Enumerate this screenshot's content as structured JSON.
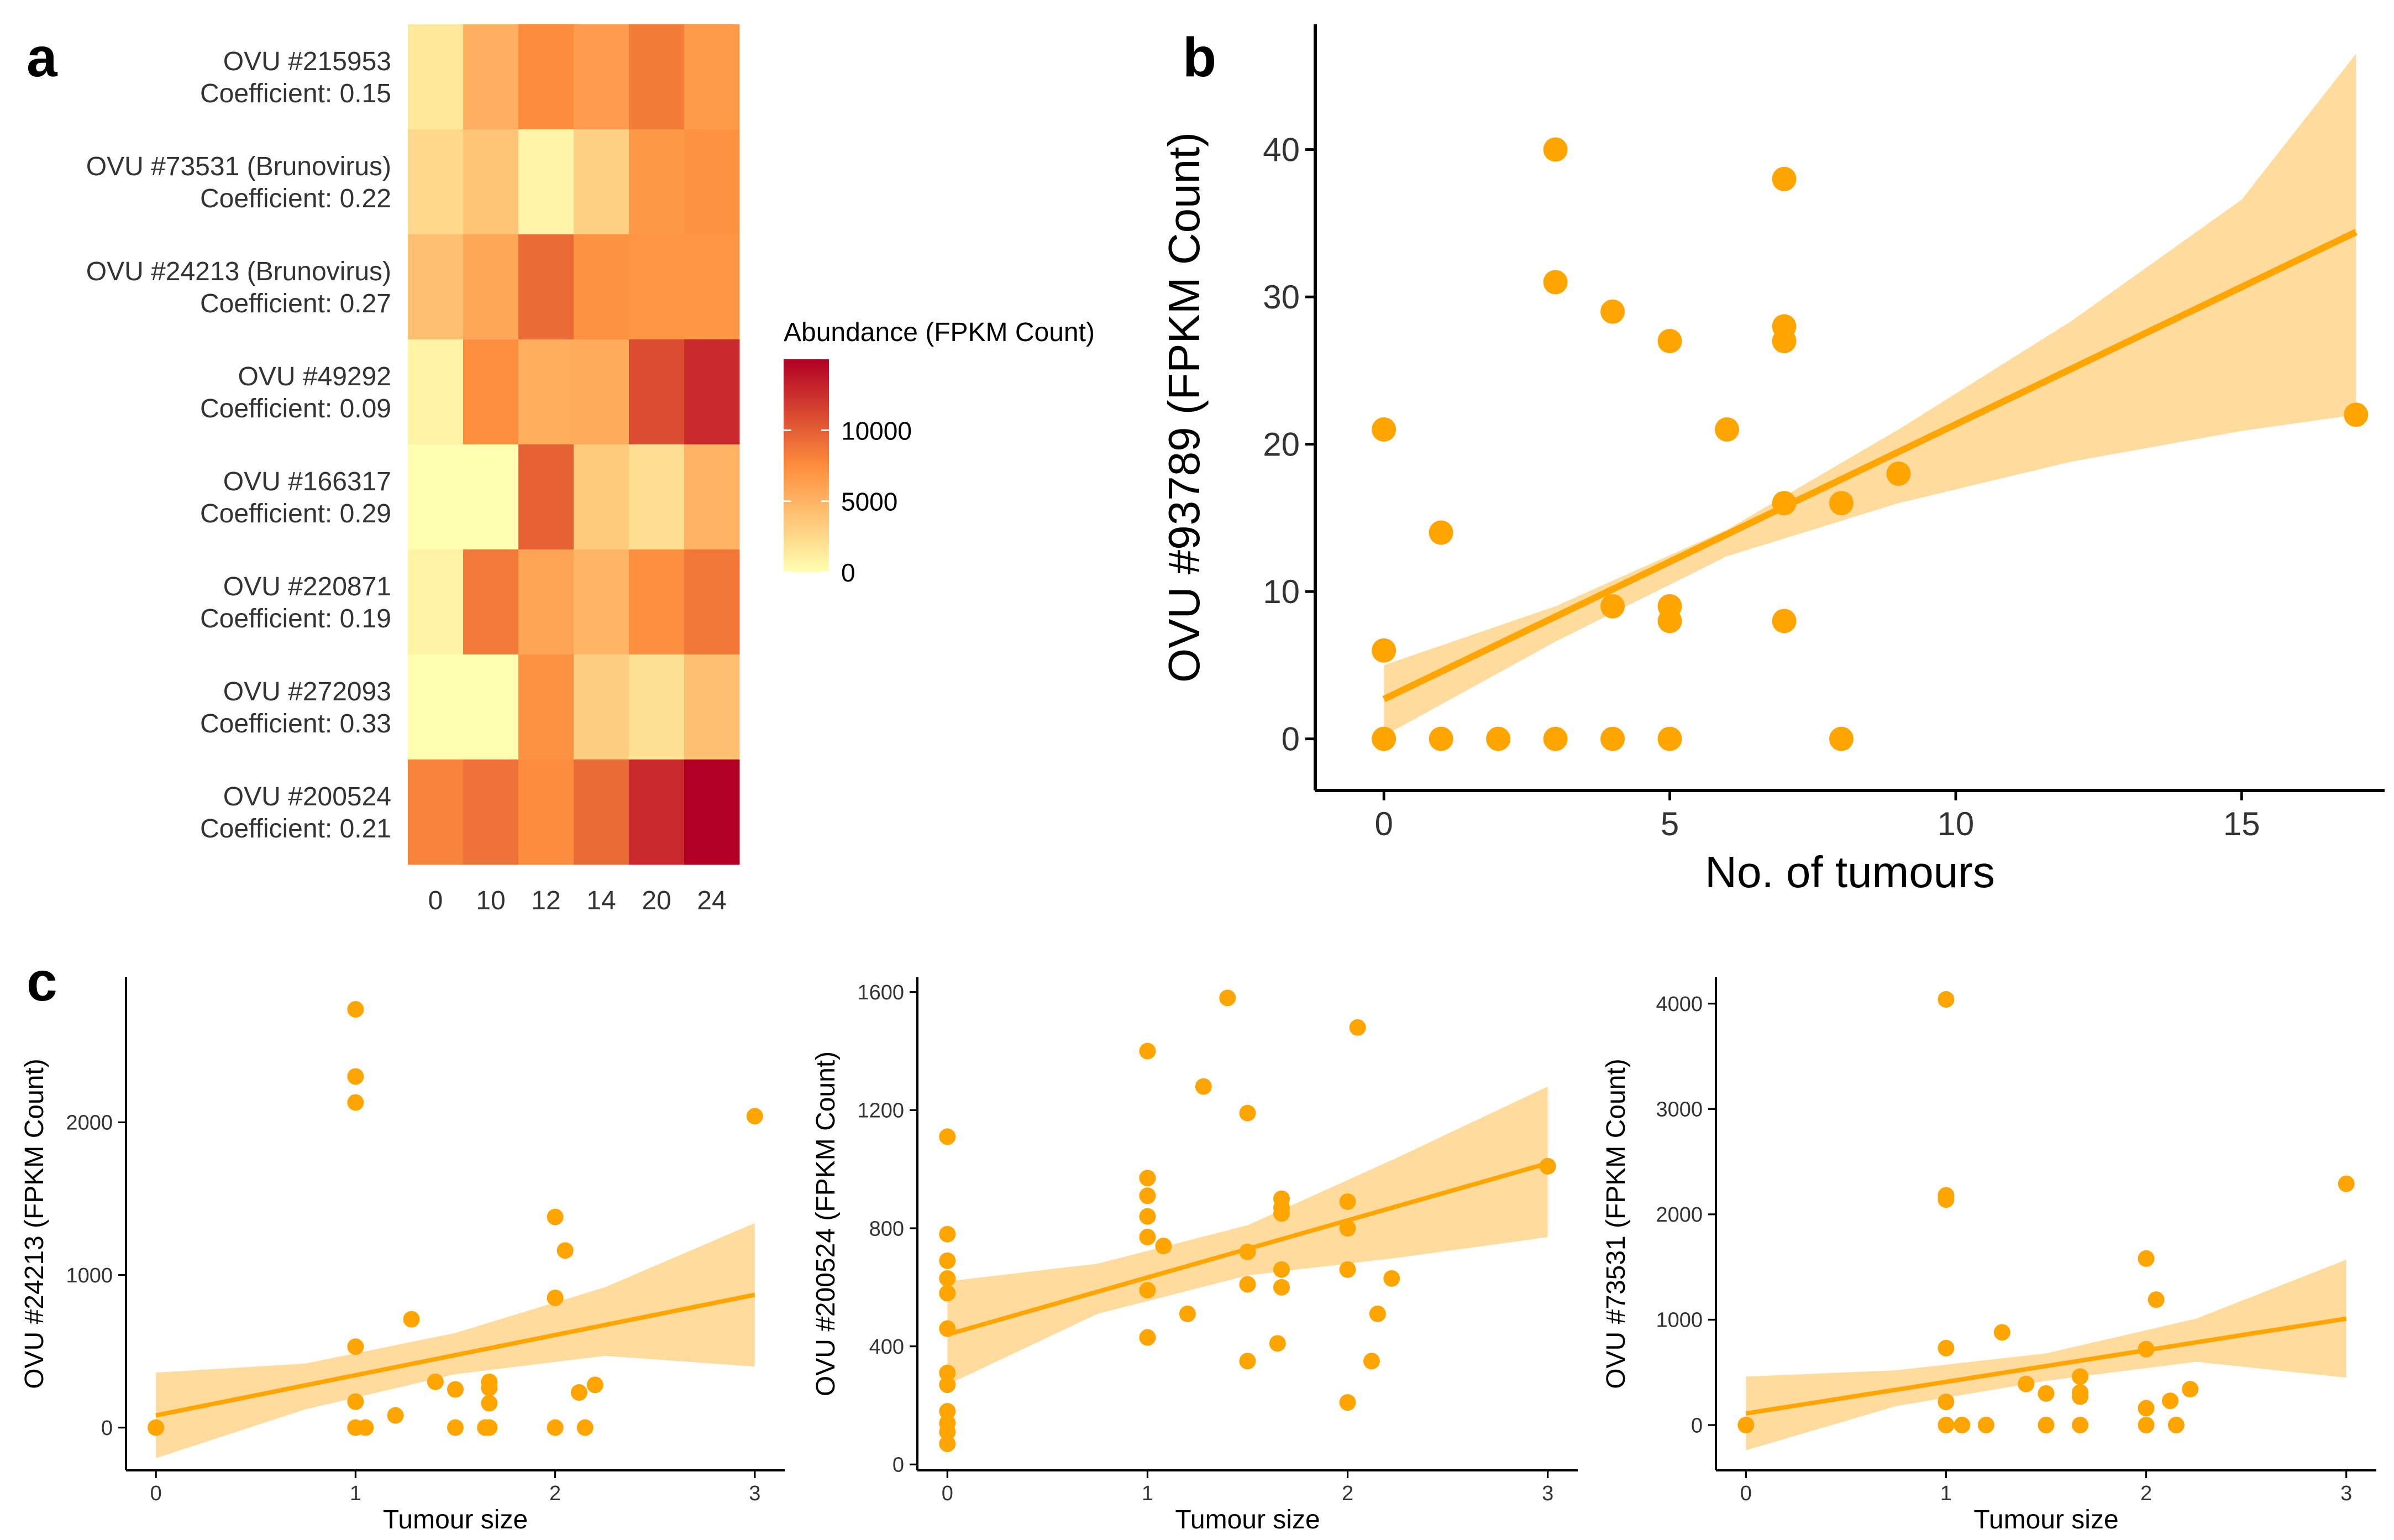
{
  "colors": {
    "point": "#FFA500",
    "band": "#FFDA99",
    "axis": "#000000",
    "text": "#333333",
    "heat_low": "#FFFFB2",
    "heat_mid": "#FD8D3C",
    "heat_high": "#B10026"
  },
  "panel_labels": {
    "a": "a",
    "b": "b",
    "c": "c"
  },
  "chart_data": [
    {
      "id": "a",
      "type": "heatmap",
      "title": "",
      "xlabel": "",
      "ylabel": "",
      "columns": [
        "0",
        "10",
        "12",
        "14",
        "20",
        "24"
      ],
      "rows": [
        {
          "name": "OVU #215953",
          "coef": "Coefficient: 0.15",
          "values": [
            1500,
            5200,
            7500,
            6500,
            8400,
            6600
          ]
        },
        {
          "name": "OVU #73531 (Brunovirus)",
          "coef": "Coefficient: 0.22",
          "values": [
            2500,
            3800,
            700,
            3000,
            6800,
            7200
          ]
        },
        {
          "name": "OVU #24213 (Brunovirus)",
          "coef": "Coefficient: 0.27",
          "values": [
            4200,
            5800,
            9300,
            7200,
            6900,
            6900
          ]
        },
        {
          "name": "OVU #49292",
          "coef": "Coefficient: 0.09",
          "values": [
            800,
            7300,
            5400,
            5500,
            11000,
            12800
          ]
        },
        {
          "name": "OVU #166317",
          "coef": "Coefficient: 0.29",
          "values": [
            0,
            0,
            9800,
            3500,
            2100,
            5000
          ]
        },
        {
          "name": "OVU #220871",
          "coef": "Coefficient: 0.19",
          "values": [
            800,
            8500,
            6000,
            4800,
            7300,
            8600
          ]
        },
        {
          "name": "OVU #272093",
          "coef": "Coefficient: 0.33",
          "values": [
            0,
            0,
            7200,
            3200,
            2000,
            4200
          ]
        },
        {
          "name": "OVU #200524",
          "coef": "Coefficient: 0.21",
          "values": [
            8000,
            9000,
            7500,
            9300,
            12800,
            15000
          ]
        }
      ],
      "scale": {
        "title": "Abundance (FPKM Count)",
        "min": 0,
        "max": 15000,
        "ticks": [
          0,
          5000,
          10000
        ],
        "tick_labels": [
          "0",
          "5000",
          "10000"
        ]
      }
    },
    {
      "id": "b",
      "type": "scatter",
      "xlabel": "No. of tumours",
      "ylabel": "OVU #93789 (FPKM Count)",
      "xlim": [
        -1.2,
        17.5
      ],
      "ylim": [
        -3.5,
        48.5
      ],
      "xticks": [
        0,
        5,
        10,
        15
      ],
      "yticks": [
        0,
        10,
        20,
        30,
        40
      ],
      "points": [
        [
          0,
          21
        ],
        [
          0,
          6
        ],
        [
          0,
          0
        ],
        [
          1,
          14
        ],
        [
          1,
          0
        ],
        [
          2,
          0
        ],
        [
          3,
          40
        ],
        [
          3,
          31
        ],
        [
          3,
          0
        ],
        [
          4,
          29
        ],
        [
          4,
          9
        ],
        [
          4,
          0
        ],
        [
          5,
          27
        ],
        [
          5,
          9
        ],
        [
          5,
          8
        ],
        [
          5,
          0
        ],
        [
          6,
          21
        ],
        [
          7,
          38
        ],
        [
          7,
          28
        ],
        [
          7,
          27
        ],
        [
          7,
          16
        ],
        [
          7,
          8
        ],
        [
          8,
          16
        ],
        [
          8,
          0
        ],
        [
          9,
          18
        ],
        [
          17,
          22
        ]
      ],
      "fit": {
        "x0": 0,
        "y0": 2.7,
        "x1": 17,
        "y1": 34.4
      },
      "band": [
        [
          0,
          5.0,
          0.2
        ],
        [
          3,
          9.0,
          6.6
        ],
        [
          6,
          14.2,
          12.4
        ],
        [
          9,
          21.0,
          16.0
        ],
        [
          12,
          28.3,
          18.8
        ],
        [
          15,
          36.6,
          20.9
        ],
        [
          17,
          46.5,
          22.0
        ]
      ]
    },
    {
      "id": "c1",
      "type": "scatter",
      "xlabel": "Tumour size",
      "ylabel": "OVU #24213 (FPKM Count)",
      "xlim": [
        -0.15,
        3.15
      ],
      "ylim": [
        -280,
        2950
      ],
      "xticks": [
        0,
        1,
        2,
        3
      ],
      "yticks": [
        0,
        1000,
        2000
      ],
      "points": [
        [
          0,
          0
        ],
        [
          1,
          2740
        ],
        [
          1,
          2300
        ],
        [
          1,
          2130
        ],
        [
          1,
          530
        ],
        [
          1,
          170
        ],
        [
          1,
          0
        ],
        [
          1.05,
          0
        ],
        [
          1.2,
          80
        ],
        [
          1.28,
          710
        ],
        [
          1.4,
          300
        ],
        [
          1.5,
          250
        ],
        [
          1.5,
          0
        ],
        [
          1.65,
          0
        ],
        [
          1.67,
          300
        ],
        [
          1.67,
          260
        ],
        [
          1.67,
          160
        ],
        [
          1.67,
          0
        ],
        [
          2,
          1380
        ],
        [
          2,
          850
        ],
        [
          2,
          0
        ],
        [
          2.05,
          1160
        ],
        [
          2.12,
          230
        ],
        [
          2.15,
          0
        ],
        [
          2.2,
          280
        ],
        [
          3,
          2040
        ]
      ],
      "fit": {
        "x0": 0,
        "y0": 80,
        "x1": 3,
        "y1": 870
      },
      "band": [
        [
          0,
          360,
          -200
        ],
        [
          0.75,
          420,
          120
        ],
        [
          1.5,
          620,
          350
        ],
        [
          2.25,
          920,
          470
        ],
        [
          3,
          1340,
          400
        ]
      ]
    },
    {
      "id": "c2",
      "type": "scatter",
      "xlabel": "Tumour size",
      "ylabel": "OVU #200524 (FPKM Count)",
      "xlim": [
        -0.15,
        3.15
      ],
      "ylim": [
        -20,
        1650
      ],
      "xticks": [
        0,
        1,
        2,
        3
      ],
      "yticks": [
        0,
        400,
        800,
        1200,
        1600
      ],
      "ytick_labels": [
        "0",
        "400",
        "800",
        "1200",
        "1600"
      ],
      "points": [
        [
          0,
          1110
        ],
        [
          0,
          780
        ],
        [
          0,
          690
        ],
        [
          0,
          630
        ],
        [
          0,
          580
        ],
        [
          0,
          460
        ],
        [
          0,
          310
        ],
        [
          0,
          270
        ],
        [
          0,
          180
        ],
        [
          0,
          140
        ],
        [
          0,
          110
        ],
        [
          0,
          70
        ],
        [
          1,
          1400
        ],
        [
          1,
          970
        ],
        [
          1,
          910
        ],
        [
          1,
          840
        ],
        [
          1,
          770
        ],
        [
          1,
          590
        ],
        [
          1,
          430
        ],
        [
          1.08,
          740
        ],
        [
          1.2,
          510
        ],
        [
          1.28,
          1280
        ],
        [
          1.4,
          1580
        ],
        [
          1.5,
          1190
        ],
        [
          1.5,
          720
        ],
        [
          1.5,
          610
        ],
        [
          1.5,
          350
        ],
        [
          1.65,
          410
        ],
        [
          1.67,
          900
        ],
        [
          1.67,
          870
        ],
        [
          1.67,
          850
        ],
        [
          1.67,
          660
        ],
        [
          1.67,
          600
        ],
        [
          2,
          890
        ],
        [
          2,
          800
        ],
        [
          2,
          660
        ],
        [
          2,
          210
        ],
        [
          2.05,
          1480
        ],
        [
          2.12,
          350
        ],
        [
          2.15,
          510
        ],
        [
          2.22,
          630
        ],
        [
          3,
          1010
        ]
      ],
      "fit": {
        "x0": 0,
        "y0": 440,
        "x1": 3,
        "y1": 1020
      },
      "band": [
        [
          0,
          620,
          270
        ],
        [
          0.75,
          680,
          510
        ],
        [
          1.5,
          810,
          640
        ],
        [
          2.25,
          1040,
          700
        ],
        [
          3,
          1280,
          770
        ]
      ]
    },
    {
      "id": "c3",
      "type": "scatter",
      "xlabel": "Tumour size",
      "ylabel": "OVU #73531 (FPKM Count)",
      "xlim": [
        -0.15,
        3.15
      ],
      "ylim": [
        -430,
        4250
      ],
      "xticks": [
        0,
        1,
        2,
        3
      ],
      "yticks": [
        0,
        1000,
        2000,
        3000,
        4000
      ],
      "points": [
        [
          0,
          0
        ],
        [
          1,
          4040
        ],
        [
          1,
          2180
        ],
        [
          1,
          2140
        ],
        [
          1,
          730
        ],
        [
          1,
          220
        ],
        [
          1,
          0
        ],
        [
          1.08,
          0
        ],
        [
          1.2,
          0
        ],
        [
          1.28,
          880
        ],
        [
          1.4,
          390
        ],
        [
          1.5,
          300
        ],
        [
          1.5,
          0
        ],
        [
          1.67,
          460
        ],
        [
          1.67,
          310
        ],
        [
          1.67,
          270
        ],
        [
          1.67,
          0
        ],
        [
          2,
          1580
        ],
        [
          2,
          720
        ],
        [
          2,
          160
        ],
        [
          2,
          0
        ],
        [
          2.05,
          1190
        ],
        [
          2.12,
          230
        ],
        [
          2.15,
          0
        ],
        [
          2.22,
          340
        ],
        [
          3,
          2290
        ]
      ],
      "fit": {
        "x0": 0,
        "y0": 110,
        "x1": 3,
        "y1": 1010
      },
      "band": [
        [
          0,
          460,
          -240
        ],
        [
          0.75,
          520,
          180
        ],
        [
          1.5,
          680,
          420
        ],
        [
          2.25,
          1010,
          600
        ],
        [
          3,
          1570,
          450
        ]
      ]
    }
  ]
}
